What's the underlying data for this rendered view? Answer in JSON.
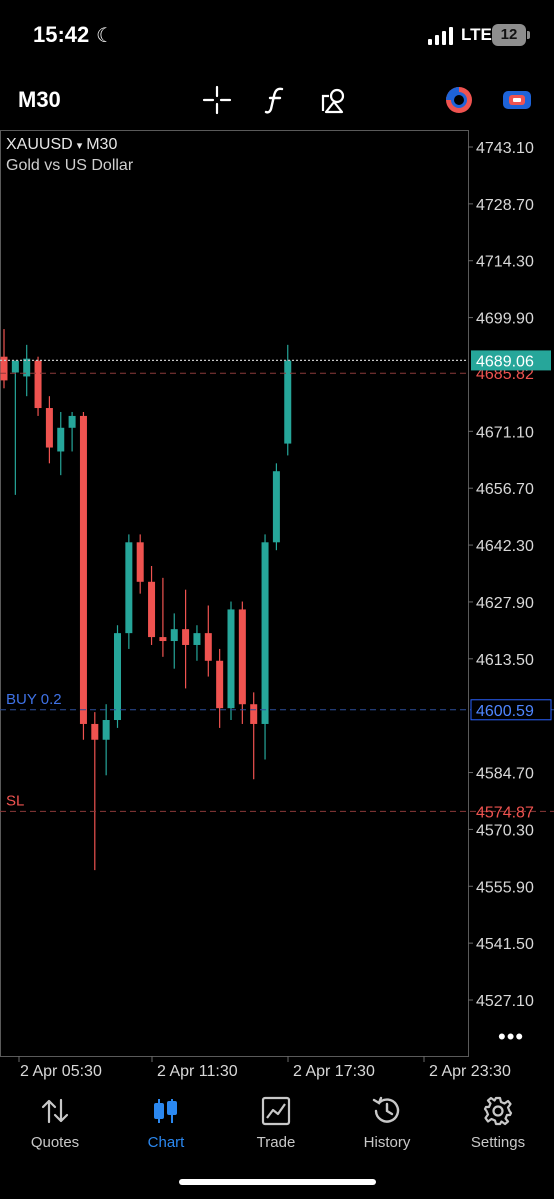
{
  "status_bar": {
    "time": "15:42",
    "network": "LTE",
    "battery": "12",
    "icons": [
      "moon-icon",
      "signal-icon",
      "battery-icon"
    ]
  },
  "toolbar": {
    "timeframe": "M30",
    "icons": [
      "crosshair-icon",
      "indicator-icon",
      "objects-icon",
      "trading-icon",
      "one-click-icon"
    ]
  },
  "chart": {
    "symbol": "XAUUSD",
    "symbol_arrow": "▾",
    "timeframe": "M30",
    "description": "Gold vs US Dollar",
    "more": "•••",
    "colors": {
      "bull": "#26a69a",
      "bear": "#ef5350",
      "bid": "#26a69a",
      "buy": "#2962ff",
      "sl": "#ef5350"
    }
  },
  "nav": {
    "items": [
      {
        "label": "Quotes",
        "icon": "quotes-icon"
      },
      {
        "label": "Chart",
        "icon": "chart-icon",
        "active": true
      },
      {
        "label": "Trade",
        "icon": "trade-icon"
      },
      {
        "label": "History",
        "icon": "history-icon"
      },
      {
        "label": "Settings",
        "icon": "settings-icon"
      }
    ]
  },
  "chart_data": {
    "type": "candlestick",
    "symbol": "XAUUSD",
    "timeframe": "M30",
    "y_ticks": [
      4743.1,
      4728.7,
      4714.3,
      4699.9,
      4671.1,
      4656.7,
      4642.3,
      4627.9,
      4613.5,
      4584.7,
      4570.3,
      4555.9,
      4541.5,
      4527.1
    ],
    "y_tick_labels": [
      "4743.10",
      "4728.70",
      "4714.30",
      "4699.90",
      "4671.10",
      "4656.70",
      "4642.30",
      "4627.90",
      "4613.50",
      "4584.70",
      "4570.30",
      "4555.90",
      "4541.50",
      "4527.10"
    ],
    "x_tick_labels": [
      "2 Apr 05:30",
      "2 Apr 11:30",
      "2 Apr 17:30",
      "2 Apr 23:30"
    ],
    "levels": [
      {
        "name": "bid",
        "value": 4689.06,
        "label": "4689.06"
      },
      {
        "name": "ask",
        "value": 4685.82,
        "label": "4685.82"
      },
      {
        "name": "buy",
        "value": 4600.59,
        "label": "4600.59",
        "line_label": "BUY 0.2"
      },
      {
        "name": "sl",
        "value": 4574.87,
        "label": "4574.87",
        "line_label": "SL"
      }
    ],
    "candles": [
      {
        "o": 4690.0,
        "h": 4697.0,
        "l": 4682.0,
        "c": 4684.0
      },
      {
        "o": 4686.0,
        "h": 4688.0,
        "l": 4655.0,
        "c": 4689.0
      },
      {
        "o": 4685.0,
        "h": 4693.0,
        "l": 4680.0,
        "c": 4689.5
      },
      {
        "o": 4689.0,
        "h": 4690.0,
        "l": 4675.0,
        "c": 4677.0
      },
      {
        "o": 4677.0,
        "h": 4680.0,
        "l": 4663.0,
        "c": 4667.0
      },
      {
        "o": 4666.0,
        "h": 4676.0,
        "l": 4660.0,
        "c": 4672.0
      },
      {
        "o": 4672.0,
        "h": 4676.0,
        "l": 4666.0,
        "c": 4675.0
      },
      {
        "o": 4675.0,
        "h": 4676.0,
        "l": 4593.0,
        "c": 4597.0
      },
      {
        "o": 4597.0,
        "h": 4600.0,
        "l": 4560.0,
        "c": 4593.0
      },
      {
        "o": 4593.0,
        "h": 4602.0,
        "l": 4584.0,
        "c": 4598.0
      },
      {
        "o": 4598.0,
        "h": 4622.0,
        "l": 4596.0,
        "c": 4620.0
      },
      {
        "o": 4620.0,
        "h": 4645.0,
        "l": 4616.0,
        "c": 4643.0
      },
      {
        "o": 4643.0,
        "h": 4645.0,
        "l": 4630.0,
        "c": 4633.0
      },
      {
        "o": 4633.0,
        "h": 4637.0,
        "l": 4617.0,
        "c": 4619.0
      },
      {
        "o": 4619.0,
        "h": 4634.0,
        "l": 4614.0,
        "c": 4618.0
      },
      {
        "o": 4618.0,
        "h": 4625.0,
        "l": 4611.0,
        "c": 4621.0
      },
      {
        "o": 4621.0,
        "h": 4631.0,
        "l": 4606.0,
        "c": 4617.0
      },
      {
        "o": 4617.0,
        "h": 4622.0,
        "l": 4613.0,
        "c": 4620.0
      },
      {
        "o": 4620.0,
        "h": 4627.0,
        "l": 4609.0,
        "c": 4613.0
      },
      {
        "o": 4613.0,
        "h": 4616.0,
        "l": 4596.0,
        "c": 4601.0
      },
      {
        "o": 4601.0,
        "h": 4628.0,
        "l": 4598.0,
        "c": 4626.0
      },
      {
        "o": 4626.0,
        "h": 4628.0,
        "l": 4597.0,
        "c": 4602.0
      },
      {
        "o": 4602.0,
        "h": 4605.0,
        "l": 4583.0,
        "c": 4597.0
      },
      {
        "o": 4597.0,
        "h": 4645.0,
        "l": 4588.0,
        "c": 4643.0
      },
      {
        "o": 4643.0,
        "h": 4663.0,
        "l": 4641.0,
        "c": 4661.0
      },
      {
        "o": 4668.0,
        "h": 4693.0,
        "l": 4665.0,
        "c": 4689.0
      }
    ]
  }
}
